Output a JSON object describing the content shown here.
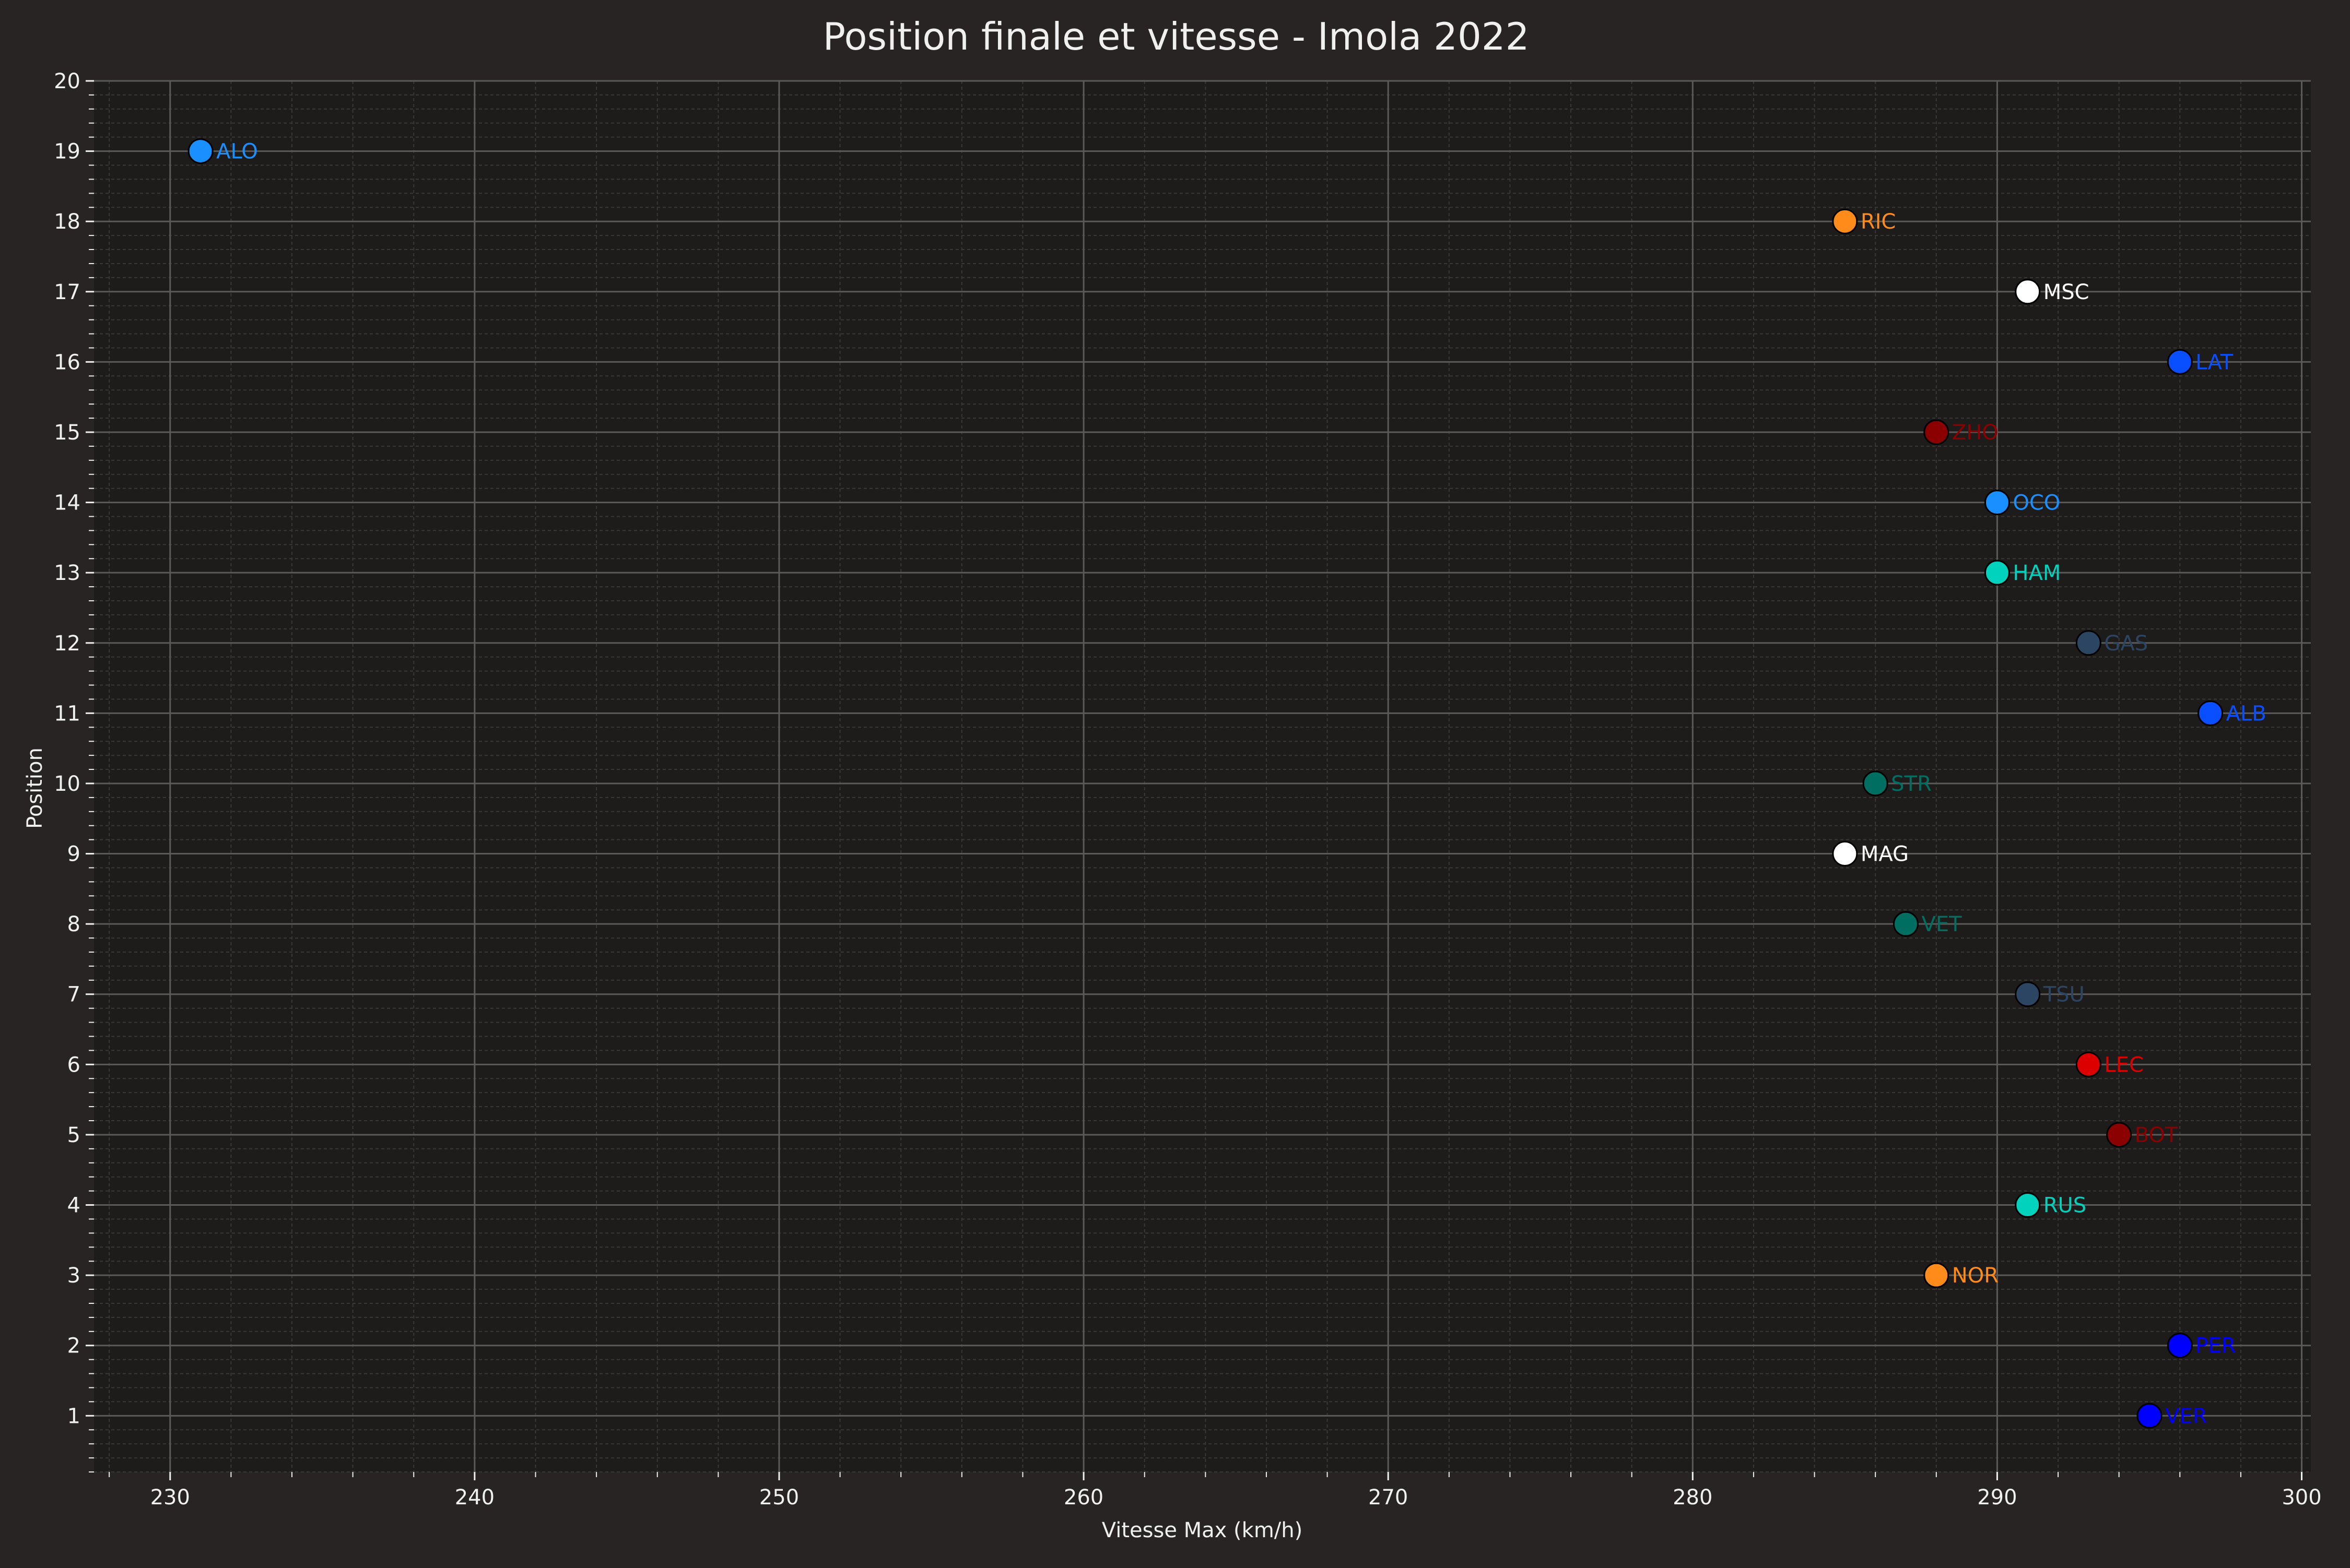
{
  "chart_data": {
    "type": "scatter",
    "title": "Position finale et vitesse - Imola 2022",
    "xlabel": "Vitesse Max (km/h)",
    "ylabel": "Position",
    "xlim": [
      227.5,
      300.3
    ],
    "ylim": [
      0.2,
      20.0
    ],
    "x_ticks": [
      230,
      240,
      250,
      260,
      270,
      280,
      290,
      300
    ],
    "y_ticks": [
      1,
      2,
      3,
      4,
      5,
      6,
      7,
      8,
      9,
      10,
      11,
      12,
      13,
      14,
      15,
      16,
      17,
      18,
      19,
      20
    ],
    "grid": true,
    "legend": "none",
    "colors": {
      "background": "#272423",
      "plot_background": "#1e1c1b",
      "text": "#f0f0f0",
      "grid_major": "#5c5a59",
      "grid_minor": "#3a3837"
    },
    "points": [
      {
        "label": "ALO",
        "x": 231,
        "y": 19,
        "color": "#1a8fff"
      },
      {
        "label": "RIC",
        "x": 285,
        "y": 18,
        "color": "#ff8c1a"
      },
      {
        "label": "MSC",
        "x": 291,
        "y": 17,
        "color": "#ffffff"
      },
      {
        "label": "LAT",
        "x": 296,
        "y": 16,
        "color": "#0a4fff"
      },
      {
        "label": "ZHO",
        "x": 288,
        "y": 15,
        "color": "#8b0000"
      },
      {
        "label": "OCO",
        "x": 290,
        "y": 14,
        "color": "#1a8fff"
      },
      {
        "label": "HAM",
        "x": 290,
        "y": 13,
        "color": "#00d2be"
      },
      {
        "label": "GAS",
        "x": 293,
        "y": 12,
        "color": "#2b4562"
      },
      {
        "label": "ALB",
        "x": 297,
        "y": 11,
        "color": "#0a4fff"
      },
      {
        "label": "STR",
        "x": 286,
        "y": 10,
        "color": "#006f62"
      },
      {
        "label": "MAG",
        "x": 285,
        "y": 9,
        "color": "#ffffff"
      },
      {
        "label": "VET",
        "x": 287,
        "y": 8,
        "color": "#006f62"
      },
      {
        "label": "TSU",
        "x": 291,
        "y": 7,
        "color": "#2b4562"
      },
      {
        "label": "LEC",
        "x": 293,
        "y": 6,
        "color": "#dc0000"
      },
      {
        "label": "BOT",
        "x": 294,
        "y": 5,
        "color": "#8b0000"
      },
      {
        "label": "RUS",
        "x": 291,
        "y": 4,
        "color": "#00d2be"
      },
      {
        "label": "NOR",
        "x": 288,
        "y": 3,
        "color": "#ff8c1a"
      },
      {
        "label": "PER",
        "x": 296,
        "y": 2,
        "color": "#0000ff"
      },
      {
        "label": "VER",
        "x": 295,
        "y": 1,
        "color": "#0000ff"
      }
    ]
  }
}
